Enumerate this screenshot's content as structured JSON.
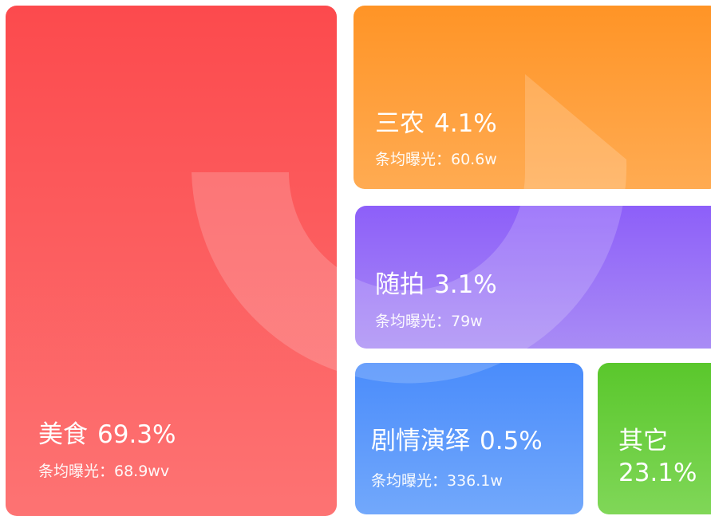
{
  "cards": [
    {
      "name": "美食",
      "share": "69.3%",
      "metric": "条均曝光：68.9wv"
    },
    {
      "name": "三农",
      "share": "4.1%",
      "metric": "条均曝光：60.6w"
    },
    {
      "name": "随拍",
      "share": "3.1%",
      "metric": "条均曝光：79w"
    },
    {
      "name": "剧情演绎",
      "share": "0.5%",
      "metric": "条均曝光：336.1w"
    },
    {
      "name": "其它",
      "share": "23.1%"
    }
  ]
}
